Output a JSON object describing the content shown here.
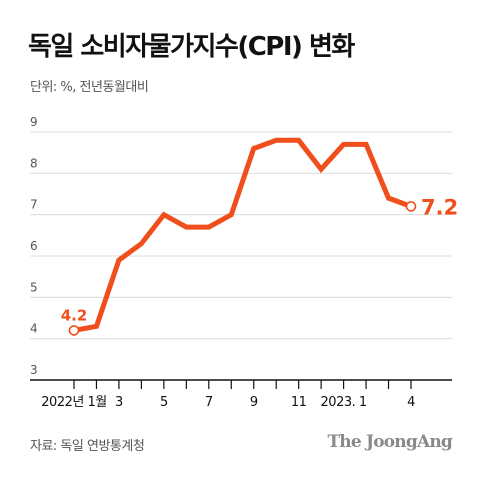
{
  "title": "독일 소비자물가지수(CPI) 변화",
  "unit_note": "단위: %, 전년동월대비",
  "source": "자료: 독일 연방통계청",
  "brand": "The JoongAng",
  "colors": {
    "line": "#f04e1c",
    "grid": "#dcdcdc",
    "axis": "#111111",
    "tick": "#555555"
  },
  "chart_data": {
    "type": "line",
    "title": "독일 소비자물가지수(CPI) 변화",
    "ylabel": "단위: %, 전년동월대비",
    "ylim": [
      3,
      9
    ],
    "yticks": [
      3,
      4,
      5,
      6,
      7,
      8,
      9
    ],
    "x": [
      "2022-01",
      "2022-02",
      "2022-03",
      "2022-04",
      "2022-05",
      "2022-06",
      "2022-07",
      "2022-08",
      "2022-09",
      "2022-10",
      "2022-11",
      "2022-12",
      "2023-01",
      "2023-02",
      "2023-03",
      "2023-04"
    ],
    "xtick_labels": [
      "2022년 1월",
      "",
      "3",
      "",
      "5",
      "",
      "7",
      "",
      "9",
      "",
      "11",
      "",
      "2023. 1",
      "",
      "",
      "4"
    ],
    "series": [
      {
        "values": [
          4.2,
          4.3,
          5.9,
          6.3,
          7.0,
          6.7,
          6.7,
          7.0,
          8.6,
          8.8,
          8.8,
          8.1,
          8.7,
          8.7,
          7.4,
          7.2
        ]
      }
    ],
    "annotations": [
      {
        "index": 0,
        "text": "4.2"
      },
      {
        "index": 15,
        "text": "7.2"
      }
    ],
    "grid": true
  }
}
